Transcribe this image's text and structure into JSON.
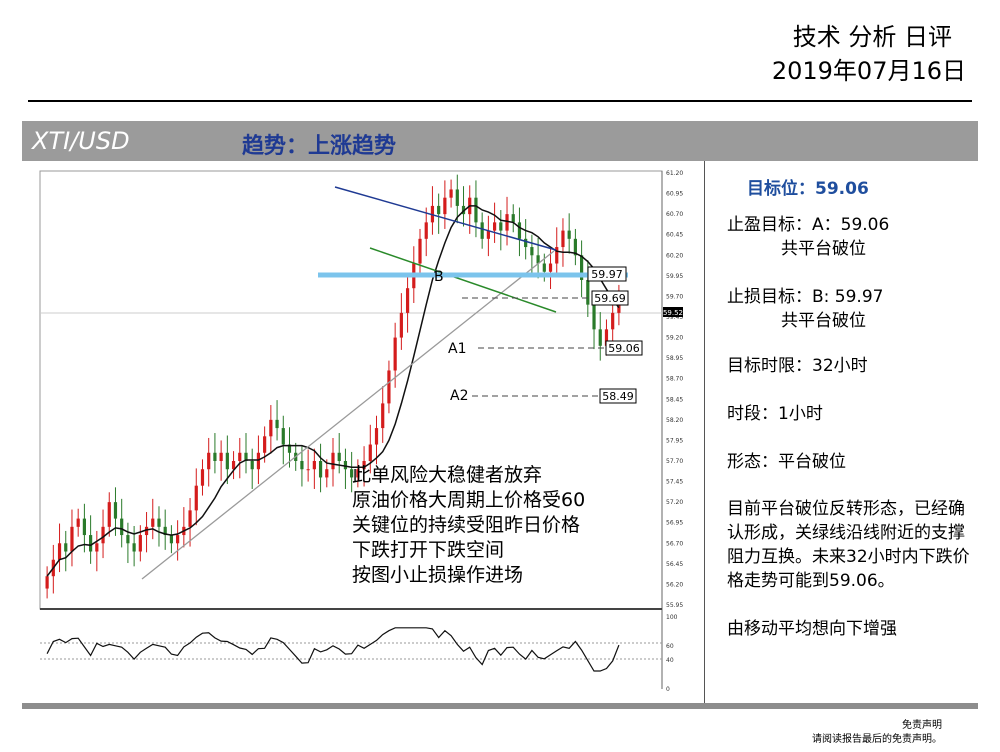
{
  "header": {
    "title": "技术 分析 日评",
    "date": "2019年07月16日"
  },
  "band": {
    "pair": "XTI/USD",
    "trend": "趋势：上涨趋势"
  },
  "chart_data": {
    "type": "candlestick",
    "title": "",
    "xlabel": "",
    "ylabel": "",
    "ylim": [
      55.95,
      61.2
    ],
    "y_ticks": [
      "61.20",
      "60.95",
      "60.70",
      "60.45",
      "60.20",
      "59.95",
      "59.70",
      "59.45",
      "59.20",
      "58.95",
      "58.70",
      "58.45",
      "58.20",
      "57.95",
      "57.70",
      "57.45",
      "57.20",
      "56.95",
      "56.70",
      "56.45",
      "56.20",
      "55.95"
    ],
    "price_tag": "59.52",
    "levels": [
      {
        "label": "59.97",
        "value": 59.97,
        "marker": "B"
      },
      {
        "label": "59.69",
        "value": 59.69,
        "marker": ""
      },
      {
        "label": "59.06",
        "value": 59.06,
        "marker": "A1"
      },
      {
        "label": "58.49",
        "value": 58.49,
        "marker": "A2"
      }
    ],
    "close_approx": [
      56.3,
      56.5,
      56.7,
      56.6,
      56.9,
      57.0,
      56.8,
      56.6,
      56.7,
      56.9,
      57.2,
      57.0,
      56.8,
      56.7,
      56.6,
      56.8,
      56.9,
      57.0,
      56.9,
      56.8,
      56.7,
      56.8,
      56.9,
      57.1,
      57.4,
      57.6,
      57.8,
      57.7,
      57.8,
      57.6,
      57.7,
      57.8,
      57.7,
      57.6,
      57.8,
      58.0,
      58.2,
      58.1,
      57.9,
      57.8,
      57.7,
      57.6,
      57.6,
      57.7,
      57.5,
      57.6,
      57.8,
      57.7,
      57.6,
      57.5,
      57.6,
      57.7,
      57.9,
      58.1,
      58.4,
      58.8,
      59.2,
      59.5,
      59.8,
      60.1,
      60.4,
      60.6,
      60.8,
      60.7,
      60.9,
      61.0,
      60.8,
      60.7,
      60.9,
      60.6,
      60.4,
      60.5,
      60.6,
      60.5,
      60.7,
      60.6,
      60.4,
      60.3,
      60.2,
      60.1,
      60.0,
      60.1,
      60.3,
      60.5,
      60.4,
      60.2,
      59.9,
      59.6,
      59.3,
      59.1,
      59.3,
      59.5,
      59.6
    ],
    "oscillator": {
      "ticks": [
        "100",
        "60",
        "40",
        "0"
      ]
    }
  },
  "overlay_text": [
    "此单风险大稳健者放弃",
    "原油价格大周期上价格受60",
    "关键位的持续受阻昨日价格",
    "下跌打开下跌空间",
    "按图小止损操作进场"
  ],
  "panel": {
    "target_label": "目标位：59.06",
    "tp_line1": "止盈目标：A：59.06",
    "tp_line2": "共平台破位",
    "sl_line1": "止损目标：B: 59.97",
    "sl_line2": "共平台破位",
    "horizon": "目标时限：32小时",
    "period": "时段：1小时",
    "pattern": "形态：平台破位",
    "desc": "目前平台破位反转形态，已经确认形成，关绿线沿线附近的支撑阻力互换。未来32小时内下跌价格走势可能到59.06。",
    "ma_note": "由移动平均想向下增强"
  },
  "disclaimer": {
    "line1": "免责声明",
    "line2": "请阅读报告最后的免责声明。"
  },
  "colors": {
    "up": "#d41c1c",
    "down": "#2a7a2a",
    "ma": "#111111",
    "channel": "#1f3a93",
    "green_line": "#2a8a2a",
    "support": "#9a9a9a",
    "platform": "#7cc4ec"
  }
}
